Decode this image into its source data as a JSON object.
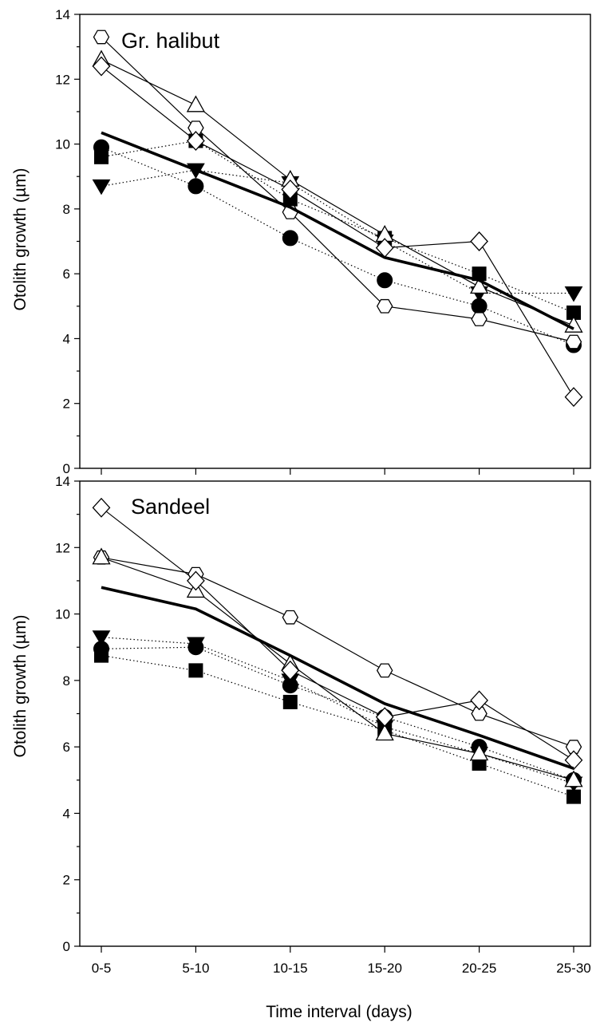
{
  "chart_data": [
    {
      "type": "line",
      "title": "Gr. halibut",
      "ylabel": "Otolith growth (µm)",
      "xlabel": "",
      "categories": [
        "0-5",
        "5-10",
        "10-15",
        "15-20",
        "20-25",
        "25-30"
      ],
      "ylim": [
        0,
        14
      ],
      "yticks": [
        0,
        2,
        4,
        6,
        8,
        10,
        12,
        14
      ],
      "grid": false,
      "series": [
        {
          "marker": "hexagon-open",
          "style": "solid",
          "values": [
            13.3,
            10.5,
            7.9,
            5.0,
            4.6,
            3.9
          ]
        },
        {
          "marker": "triangle-up-open",
          "style": "solid",
          "values": [
            12.6,
            11.2,
            8.9,
            7.2,
            5.6,
            4.4
          ]
        },
        {
          "marker": "diamond-open",
          "style": "solid",
          "values": [
            12.4,
            10.1,
            8.6,
            6.8,
            7.0,
            2.2
          ]
        },
        {
          "marker": "circle-filled",
          "style": "dotted",
          "values": [
            9.9,
            8.7,
            7.1,
            5.8,
            5.0,
            3.8
          ]
        },
        {
          "marker": "square-filled",
          "style": "dotted",
          "values": [
            9.6,
            10.1,
            8.3,
            7.1,
            6.0,
            4.8
          ]
        },
        {
          "marker": "triangle-down-filled",
          "style": "dotted",
          "values": [
            8.7,
            9.2,
            8.8,
            7.0,
            5.4,
            5.4
          ]
        },
        {
          "marker": "none",
          "style": "thick",
          "values": [
            10.35,
            9.2,
            8.05,
            6.5,
            5.8,
            4.3
          ]
        }
      ]
    },
    {
      "type": "line",
      "title": "Sandeel",
      "ylabel": "Otolith growth (µm)",
      "xlabel": "Time interval (days)",
      "categories": [
        "0-5",
        "5-10",
        "10-15",
        "15-20",
        "20-25",
        "25-30"
      ],
      "ylim": [
        0,
        14
      ],
      "yticks": [
        0,
        2,
        4,
        6,
        8,
        10,
        12,
        14
      ],
      "grid": false,
      "series": [
        {
          "marker": "hexagon-open",
          "style": "solid",
          "values": [
            11.7,
            11.2,
            9.9,
            8.3,
            7.0,
            6.0
          ]
        },
        {
          "marker": "triangle-up-open",
          "style": "solid",
          "values": [
            11.7,
            10.7,
            8.5,
            6.4,
            5.8,
            5.0
          ]
        },
        {
          "marker": "diamond-open",
          "style": "solid",
          "values": [
            13.2,
            11.0,
            8.3,
            6.9,
            7.4,
            5.6
          ]
        },
        {
          "marker": "circle-filled",
          "style": "dotted",
          "values": [
            8.95,
            9.0,
            7.85,
            6.9,
            6.0,
            5.0
          ]
        },
        {
          "marker": "square-filled",
          "style": "dotted",
          "values": [
            8.75,
            8.3,
            7.35,
            6.5,
            5.5,
            4.5
          ]
        },
        {
          "marker": "triangle-down-filled",
          "style": "dotted",
          "values": [
            9.3,
            9.1,
            8.0,
            6.6,
            5.8,
            4.9
          ]
        },
        {
          "marker": "none",
          "style": "thick",
          "values": [
            10.8,
            10.15,
            8.75,
            7.3,
            6.35,
            5.35
          ]
        }
      ]
    }
  ]
}
